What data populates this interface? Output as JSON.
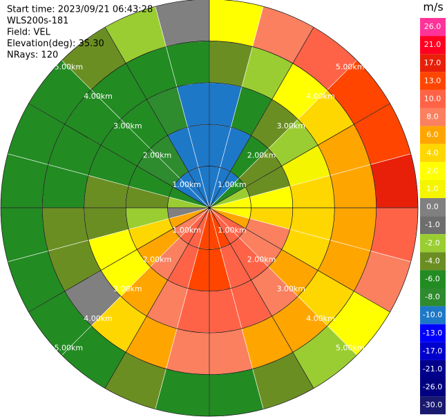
{
  "chart_data": {
    "type": "ppi",
    "header": [
      "Start time: 2023/09/21 06:43:28",
      "WLS200s-181",
      "Field: VEL",
      "Elevation(deg): 35.30",
      "NRays: 120"
    ],
    "colorbar_title": "m/s",
    "azimuth_bins": [
      0,
      15,
      30,
      45,
      60,
      75,
      90,
      105,
      120,
      135,
      150,
      165,
      180,
      195,
      210,
      225,
      240,
      255,
      270,
      285,
      300,
      315,
      330,
      345,
      360
    ],
    "range_lim": [
      0,
      5
    ],
    "range_ticks": [
      {
        "value": 1,
        "label": "1.00km"
      },
      {
        "value": 2,
        "label": "2.00km"
      },
      {
        "value": 3,
        "label": "3.00km"
      },
      {
        "value": 4,
        "label": "4.00km"
      },
      {
        "value": 5,
        "label": "5.00km"
      }
    ],
    "values": [
      [
        -10,
        -10,
        -10,
        -4,
        2
      ],
      [
        -10,
        -10,
        -6,
        -2,
        8
      ],
      [
        -10,
        -6,
        -4,
        2,
        10
      ],
      [
        -6,
        -4,
        -2,
        4,
        13
      ],
      [
        -2,
        -4,
        1,
        6,
        13
      ],
      [
        2,
        2,
        4,
        6,
        17
      ],
      [
        2,
        4,
        4,
        6,
        10
      ],
      [
        6,
        8,
        4,
        6,
        8
      ],
      [
        10,
        8,
        6,
        4,
        2
      ],
      [
        10,
        10,
        8,
        6,
        -2
      ],
      [
        13,
        10,
        10,
        6,
        -4
      ],
      [
        13,
        13,
        10,
        8,
        -6
      ],
      [
        13,
        13,
        10,
        8,
        -6
      ],
      [
        10,
        10,
        8,
        6,
        -4
      ],
      [
        10,
        8,
        6,
        4,
        -6
      ],
      [
        8,
        6,
        2,
        0,
        -6
      ],
      [
        6,
        4,
        2,
        -4,
        -6
      ],
      [
        0,
        -2,
        -4,
        -4,
        -6
      ],
      [
        -2,
        -4,
        -4,
        -6,
        -6
      ],
      [
        -6,
        -6,
        -6,
        -6,
        -6
      ],
      [
        -10,
        -8,
        -6,
        -6,
        -6
      ],
      [
        -10,
        -8,
        -6,
        -6,
        -4
      ],
      [
        -10,
        -10,
        -8,
        -6,
        -2
      ],
      [
        -10,
        -10,
        -10,
        -6,
        0
      ]
    ],
    "colorbar": [
      {
        "value": 26,
        "label": "26.0",
        "color": "#ff3399"
      },
      {
        "value": 21,
        "label": "21.0",
        "color": "#ff0022"
      },
      {
        "value": 17,
        "label": "17.0",
        "color": "#e8200a"
      },
      {
        "value": 13,
        "label": "13.0",
        "color": "#ff4500"
      },
      {
        "value": 10,
        "label": "10.0",
        "color": "#ff6347"
      },
      {
        "value": 8,
        "label": "8.0",
        "color": "#fa8060"
      },
      {
        "value": 6,
        "label": "6.0",
        "color": "#ffa500"
      },
      {
        "value": 4,
        "label": "4.0",
        "color": "#ffd700"
      },
      {
        "value": 2,
        "label": "2.0",
        "color": "#ffff00"
      },
      {
        "value": 1,
        "label": "1.0",
        "color": "#f5f500"
      },
      {
        "value": 0,
        "label": "0.0",
        "color": "#808080"
      },
      {
        "value": -1,
        "label": "-1.0",
        "color": "#6e6e6e"
      },
      {
        "value": -2,
        "label": "-2.0",
        "color": "#9acd32"
      },
      {
        "value": -4,
        "label": "-4.0",
        "color": "#6b8e23"
      },
      {
        "value": -6,
        "label": "-6.0",
        "color": "#228b22"
      },
      {
        "value": -8,
        "label": "-8.0",
        "color": "#2e8b2e"
      },
      {
        "value": -10,
        "label": "-10.0",
        "color": "#1e78c8"
      },
      {
        "value": -13,
        "label": "-13.0",
        "color": "#0000ff"
      },
      {
        "value": -17,
        "label": "-17.0",
        "color": "#0000cd"
      },
      {
        "value": -21,
        "label": "-21.0",
        "color": "#00008b"
      },
      {
        "value": -26,
        "label": "-26.0",
        "color": "#000080"
      },
      {
        "value": -30,
        "label": "-30.0",
        "color": "#191970"
      }
    ]
  }
}
